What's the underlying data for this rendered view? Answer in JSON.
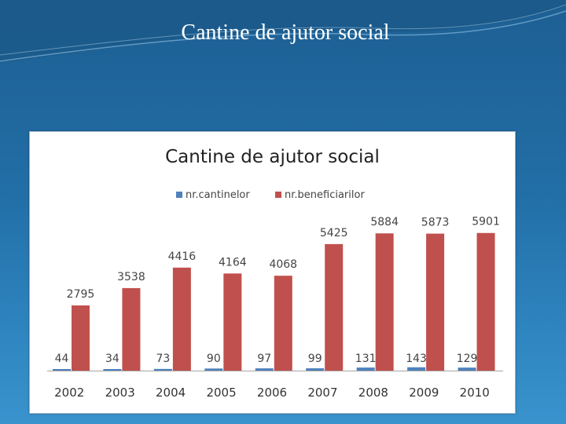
{
  "slide": {
    "title": "Cantine de ajutor social"
  },
  "chart_data": {
    "type": "bar",
    "title": "Cantine de ajutor social",
    "categories": [
      "2002",
      "2003",
      "2004",
      "2005",
      "2006",
      "2007",
      "2008",
      "2009",
      "2010"
    ],
    "series": [
      {
        "name": "nr.cantinelor",
        "color": "#4f81bd",
        "values": [
          44,
          34,
          73,
          90,
          97,
          99,
          131,
          143,
          129
        ]
      },
      {
        "name": "nr.beneficiarilor",
        "color": "#c0504d",
        "values": [
          2795,
          3538,
          4416,
          4164,
          4068,
          5425,
          5884,
          5873,
          5901
        ]
      }
    ],
    "ylim": [
      0,
      6700
    ],
    "legend": "top",
    "grid": false,
    "data_labels": true
  }
}
